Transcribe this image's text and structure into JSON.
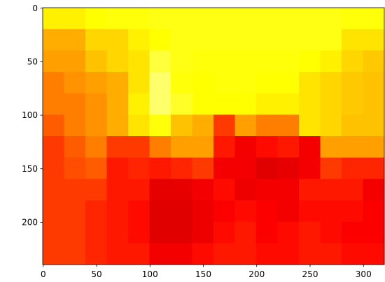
{
  "chart_data": {
    "type": "image",
    "colormap": "hot",
    "clim": [
      0,
      1
    ],
    "xlim": [
      -0.5,
      319.5
    ],
    "ylim": [
      239.5,
      -0.5
    ],
    "xticks": [
      0,
      50,
      100,
      150,
      200,
      250,
      300
    ],
    "yticks": [
      0,
      50,
      100,
      150,
      200
    ],
    "z": [
      [
        0.72,
        0.72,
        0.74,
        0.75,
        0.75,
        0.76,
        0.76,
        0.76,
        0.76,
        0.76,
        0.76,
        0.76,
        0.76,
        0.76,
        0.75,
        0.75
      ],
      [
        0.62,
        0.62,
        0.68,
        0.68,
        0.72,
        0.74,
        0.76,
        0.76,
        0.76,
        0.76,
        0.76,
        0.76,
        0.76,
        0.76,
        0.7,
        0.7
      ],
      [
        0.6,
        0.6,
        0.65,
        0.68,
        0.7,
        0.8,
        0.76,
        0.75,
        0.75,
        0.75,
        0.75,
        0.75,
        0.74,
        0.72,
        0.68,
        0.66
      ],
      [
        0.55,
        0.58,
        0.6,
        0.62,
        0.7,
        0.85,
        0.75,
        0.74,
        0.75,
        0.75,
        0.74,
        0.74,
        0.7,
        0.68,
        0.66,
        0.65
      ],
      [
        0.55,
        0.55,
        0.58,
        0.62,
        0.72,
        0.85,
        0.78,
        0.74,
        0.74,
        0.74,
        0.72,
        0.72,
        0.7,
        0.68,
        0.66,
        0.65
      ],
      [
        0.5,
        0.55,
        0.58,
        0.62,
        0.7,
        0.75,
        0.65,
        0.62,
        0.45,
        0.6,
        0.55,
        0.55,
        0.7,
        0.68,
        0.65,
        0.65
      ],
      [
        0.45,
        0.5,
        0.55,
        0.45,
        0.45,
        0.55,
        0.6,
        0.6,
        0.4,
        0.35,
        0.38,
        0.4,
        0.35,
        0.6,
        0.6,
        0.6
      ],
      [
        0.45,
        0.48,
        0.5,
        0.4,
        0.42,
        0.4,
        0.42,
        0.45,
        0.35,
        0.35,
        0.32,
        0.33,
        0.35,
        0.45,
        0.42,
        0.42
      ],
      [
        0.45,
        0.45,
        0.45,
        0.4,
        0.4,
        0.33,
        0.33,
        0.35,
        0.38,
        0.34,
        0.35,
        0.35,
        0.4,
        0.4,
        0.4,
        0.35
      ],
      [
        0.45,
        0.45,
        0.42,
        0.4,
        0.38,
        0.32,
        0.32,
        0.34,
        0.36,
        0.38,
        0.36,
        0.35,
        0.38,
        0.38,
        0.38,
        0.36
      ],
      [
        0.45,
        0.45,
        0.42,
        0.4,
        0.38,
        0.32,
        0.32,
        0.34,
        0.38,
        0.4,
        0.36,
        0.38,
        0.4,
        0.38,
        0.36,
        0.36
      ],
      [
        0.45,
        0.45,
        0.42,
        0.4,
        0.4,
        0.35,
        0.35,
        0.38,
        0.4,
        0.4,
        0.38,
        0.38,
        0.4,
        0.4,
        0.38,
        0.38
      ]
    ]
  }
}
